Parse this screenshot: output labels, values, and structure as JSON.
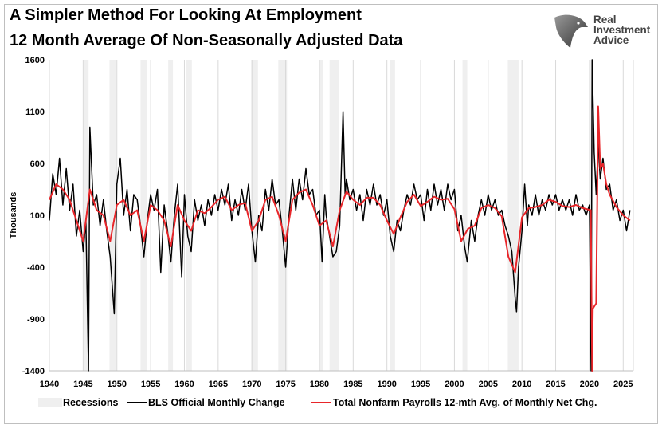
{
  "header": {
    "title_line1": "A Simpler Method For Looking At Employment",
    "title_line2": "12 Month Average Of Non-Seasonally Adjusted Data"
  },
  "logo": {
    "text_lines": [
      "Real",
      "Investment",
      "Advice"
    ],
    "icon": "eagle-head-icon"
  },
  "chart_data": {
    "type": "line",
    "ylabel": "Thousands",
    "xlabel": "",
    "xlim": [
      1940,
      2026.5
    ],
    "ylim": [
      -1400,
      1600
    ],
    "yticks": [
      1600,
      1100,
      600,
      100,
      -400,
      -900,
      -1400
    ],
    "xticks": [
      1940,
      1945,
      1950,
      1955,
      1960,
      1965,
      1970,
      1975,
      1980,
      1985,
      1990,
      1995,
      2000,
      2005,
      2010,
      2015,
      2020,
      2025
    ],
    "grid": "vertical",
    "legend_placement": "bottom",
    "colors": {
      "recessions": "#efefef",
      "bls": "#000000",
      "avg": "#e8262a",
      "grid": "#d9d9d9"
    },
    "legend": [
      "Recessions",
      "BLS Official Monthly Change",
      "Total Nonfarm Payrolls 12-mth Avg. of Monthly Net Chg."
    ],
    "recessions": [
      [
        1945.1,
        1945.8
      ],
      [
        1948.9,
        1949.8
      ],
      [
        1953.5,
        1954.4
      ],
      [
        1957.6,
        1958.3
      ],
      [
        1960.3,
        1961.1
      ],
      [
        1969.9,
        1970.9
      ],
      [
        1973.9,
        1975.2
      ],
      [
        1980.0,
        1980.5
      ],
      [
        1981.5,
        1982.9
      ],
      [
        1990.5,
        1991.2
      ],
      [
        2001.2,
        2001.9
      ],
      [
        2007.9,
        2009.5
      ],
      [
        2020.1,
        2020.4
      ]
    ],
    "series": [
      {
        "name": "BLS Official Monthly Change",
        "points": [
          [
            1940.0,
            50
          ],
          [
            1940.5,
            500
          ],
          [
            1941.0,
            300
          ],
          [
            1941.5,
            650
          ],
          [
            1942.0,
            200
          ],
          [
            1942.5,
            550
          ],
          [
            1943.0,
            150
          ],
          [
            1943.5,
            400
          ],
          [
            1944.0,
            -100
          ],
          [
            1944.5,
            150
          ],
          [
            1945.0,
            -250
          ],
          [
            1945.4,
            50
          ],
          [
            1945.8,
            -1400
          ],
          [
            1946.0,
            950
          ],
          [
            1946.5,
            200
          ],
          [
            1947.0,
            300
          ],
          [
            1947.5,
            0
          ],
          [
            1948.0,
            250
          ],
          [
            1948.5,
            -50
          ],
          [
            1949.0,
            -300
          ],
          [
            1949.6,
            -850
          ],
          [
            1950.0,
            400
          ],
          [
            1950.5,
            650
          ],
          [
            1951.0,
            100
          ],
          [
            1951.5,
            350
          ],
          [
            1952.0,
            -50
          ],
          [
            1952.5,
            300
          ],
          [
            1953.0,
            250
          ],
          [
            1953.5,
            0
          ],
          [
            1954.0,
            -300
          ],
          [
            1954.5,
            50
          ],
          [
            1955.0,
            300
          ],
          [
            1955.5,
            150
          ],
          [
            1956.0,
            350
          ],
          [
            1956.5,
            -450
          ],
          [
            1957.0,
            200
          ],
          [
            1957.5,
            -50
          ],
          [
            1958.0,
            -350
          ],
          [
            1958.5,
            100
          ],
          [
            1959.0,
            400
          ],
          [
            1959.6,
            -500
          ],
          [
            1960.0,
            300
          ],
          [
            1960.5,
            -100
          ],
          [
            1961.0,
            -250
          ],
          [
            1961.5,
            250
          ],
          [
            1962.0,
            50
          ],
          [
            1962.5,
            200
          ],
          [
            1963.0,
            0
          ],
          [
            1963.5,
            250
          ],
          [
            1964.0,
            100
          ],
          [
            1964.5,
            300
          ],
          [
            1965.0,
            150
          ],
          [
            1965.5,
            350
          ],
          [
            1966.0,
            200
          ],
          [
            1966.5,
            400
          ],
          [
            1967.0,
            50
          ],
          [
            1967.5,
            250
          ],
          [
            1968.0,
            100
          ],
          [
            1968.5,
            350
          ],
          [
            1969.0,
            150
          ],
          [
            1969.5,
            400
          ],
          [
            1970.0,
            -50
          ],
          [
            1970.5,
            -350
          ],
          [
            1971.0,
            100
          ],
          [
            1971.5,
            -50
          ],
          [
            1972.0,
            350
          ],
          [
            1972.5,
            150
          ],
          [
            1973.0,
            450
          ],
          [
            1973.5,
            200
          ],
          [
            1974.0,
            250
          ],
          [
            1974.5,
            -50
          ],
          [
            1975.0,
            -400
          ],
          [
            1975.5,
            100
          ],
          [
            1976.0,
            450
          ],
          [
            1976.5,
            150
          ],
          [
            1977.0,
            450
          ],
          [
            1977.5,
            250
          ],
          [
            1978.0,
            550
          ],
          [
            1978.5,
            300
          ],
          [
            1979.0,
            350
          ],
          [
            1979.5,
            100
          ],
          [
            1980.0,
            150
          ],
          [
            1980.4,
            -350
          ],
          [
            1980.8,
            300
          ],
          [
            1981.0,
            100
          ],
          [
            1981.5,
            -100
          ],
          [
            1982.0,
            -300
          ],
          [
            1982.5,
            -250
          ],
          [
            1983.0,
            0
          ],
          [
            1983.5,
            1100
          ],
          [
            1983.8,
            300
          ],
          [
            1984.0,
            450
          ],
          [
            1984.5,
            250
          ],
          [
            1985.0,
            350
          ],
          [
            1985.5,
            150
          ],
          [
            1986.0,
            300
          ],
          [
            1986.5,
            50
          ],
          [
            1987.0,
            350
          ],
          [
            1987.5,
            200
          ],
          [
            1988.0,
            400
          ],
          [
            1988.5,
            200
          ],
          [
            1989.0,
            300
          ],
          [
            1989.5,
            100
          ],
          [
            1990.0,
            250
          ],
          [
            1990.5,
            -100
          ],
          [
            1991.0,
            -250
          ],
          [
            1991.5,
            50
          ],
          [
            1992.0,
            -50
          ],
          [
            1992.5,
            150
          ],
          [
            1993.0,
            300
          ],
          [
            1993.5,
            200
          ],
          [
            1994.0,
            400
          ],
          [
            1994.5,
            250
          ],
          [
            1995.0,
            300
          ],
          [
            1995.5,
            50
          ],
          [
            1996.0,
            350
          ],
          [
            1996.5,
            150
          ],
          [
            1997.0,
            400
          ],
          [
            1997.5,
            200
          ],
          [
            1998.0,
            350
          ],
          [
            1998.5,
            150
          ],
          [
            1999.0,
            400
          ],
          [
            1999.5,
            250
          ],
          [
            2000.0,
            350
          ],
          [
            2000.5,
            -50
          ],
          [
            2001.0,
            100
          ],
          [
            2001.5,
            -200
          ],
          [
            2001.9,
            -350
          ],
          [
            2002.5,
            50
          ],
          [
            2003.0,
            -150
          ],
          [
            2003.5,
            100
          ],
          [
            2004.0,
            250
          ],
          [
            2004.5,
            100
          ],
          [
            2005.0,
            300
          ],
          [
            2005.5,
            150
          ],
          [
            2006.0,
            250
          ],
          [
            2006.5,
            100
          ],
          [
            2007.0,
            150
          ],
          [
            2007.5,
            0
          ],
          [
            2008.0,
            -100
          ],
          [
            2008.5,
            -250
          ],
          [
            2009.0,
            -700
          ],
          [
            2009.2,
            -830
          ],
          [
            2009.5,
            -400
          ],
          [
            2010.0,
            -50
          ],
          [
            2010.4,
            400
          ],
          [
            2010.8,
            0
          ],
          [
            2011.0,
            200
          ],
          [
            2011.5,
            100
          ],
          [
            2012.0,
            300
          ],
          [
            2012.5,
            100
          ],
          [
            2013.0,
            250
          ],
          [
            2013.5,
            150
          ],
          [
            2014.0,
            300
          ],
          [
            2014.5,
            200
          ],
          [
            2015.0,
            300
          ],
          [
            2015.5,
            150
          ],
          [
            2016.0,
            250
          ],
          [
            2016.5,
            150
          ],
          [
            2017.0,
            250
          ],
          [
            2017.5,
            100
          ],
          [
            2018.0,
            300
          ],
          [
            2018.5,
            150
          ],
          [
            2019.0,
            200
          ],
          [
            2019.5,
            100
          ],
          [
            2020.0,
            200
          ],
          [
            2020.25,
            -1400
          ],
          [
            2020.4,
            1600
          ],
          [
            2020.7,
            700
          ],
          [
            2021.0,
            300
          ],
          [
            2021.3,
            800
          ],
          [
            2021.6,
            450
          ],
          [
            2022.0,
            650
          ],
          [
            2022.5,
            350
          ],
          [
            2023.0,
            400
          ],
          [
            2023.5,
            150
          ],
          [
            2024.0,
            250
          ],
          [
            2024.5,
            50
          ],
          [
            2025.0,
            150
          ],
          [
            2025.5,
            -50
          ],
          [
            2026.0,
            150
          ]
        ]
      },
      {
        "name": "Total Nonfarm Payrolls 12-mth Avg. of Monthly Net Chg.",
        "points": [
          [
            1940,
            250
          ],
          [
            1941,
            400
          ],
          [
            1942,
            350
          ],
          [
            1943,
            250
          ],
          [
            1944,
            50
          ],
          [
            1945,
            -150
          ],
          [
            1946,
            350
          ],
          [
            1947,
            150
          ],
          [
            1948,
            100
          ],
          [
            1949,
            -150
          ],
          [
            1950,
            200
          ],
          [
            1951,
            250
          ],
          [
            1952,
            100
          ],
          [
            1953,
            150
          ],
          [
            1954,
            -150
          ],
          [
            1955,
            200
          ],
          [
            1956,
            150
          ],
          [
            1957,
            50
          ],
          [
            1958,
            -200
          ],
          [
            1959,
            200
          ],
          [
            1960,
            50
          ],
          [
            1961,
            -50
          ],
          [
            1962,
            150
          ],
          [
            1963,
            120
          ],
          [
            1964,
            180
          ],
          [
            1965,
            250
          ],
          [
            1966,
            280
          ],
          [
            1967,
            150
          ],
          [
            1968,
            200
          ],
          [
            1969,
            220
          ],
          [
            1970,
            -50
          ],
          [
            1971,
            50
          ],
          [
            1972,
            250
          ],
          [
            1973,
            280
          ],
          [
            1974,
            100
          ],
          [
            1975,
            -150
          ],
          [
            1976,
            250
          ],
          [
            1977,
            320
          ],
          [
            1978,
            350
          ],
          [
            1979,
            200
          ],
          [
            1980,
            0
          ],
          [
            1981,
            50
          ],
          [
            1982,
            -200
          ],
          [
            1983,
            150
          ],
          [
            1984,
            330
          ],
          [
            1985,
            250
          ],
          [
            1986,
            200
          ],
          [
            1987,
            270
          ],
          [
            1988,
            270
          ],
          [
            1989,
            200
          ],
          [
            1990,
            50
          ],
          [
            1991,
            -80
          ],
          [
            1992,
            80
          ],
          [
            1993,
            230
          ],
          [
            1994,
            300
          ],
          [
            1995,
            190
          ],
          [
            1996,
            230
          ],
          [
            1997,
            280
          ],
          [
            1998,
            250
          ],
          [
            1999,
            260
          ],
          [
            2000,
            160
          ],
          [
            2001,
            -150
          ],
          [
            2002,
            -30
          ],
          [
            2003,
            0
          ],
          [
            2004,
            170
          ],
          [
            2005,
            200
          ],
          [
            2006,
            170
          ],
          [
            2007,
            90
          ],
          [
            2008,
            -300
          ],
          [
            2009,
            -450
          ],
          [
            2010,
            80
          ],
          [
            2011,
            170
          ],
          [
            2012,
            180
          ],
          [
            2013,
            200
          ],
          [
            2014,
            250
          ],
          [
            2015,
            230
          ],
          [
            2016,
            190
          ],
          [
            2017,
            180
          ],
          [
            2018,
            200
          ],
          [
            2019,
            170
          ],
          [
            2020.2,
            150
          ],
          [
            2020.4,
            -1400
          ],
          [
            2020.5,
            -800
          ],
          [
            2021.0,
            -750
          ],
          [
            2021.3,
            1150
          ],
          [
            2021.6,
            550
          ],
          [
            2022,
            600
          ],
          [
            2022.5,
            400
          ],
          [
            2023,
            300
          ],
          [
            2024,
            180
          ],
          [
            2025,
            100
          ],
          [
            2026,
            50
          ]
        ]
      }
    ]
  }
}
